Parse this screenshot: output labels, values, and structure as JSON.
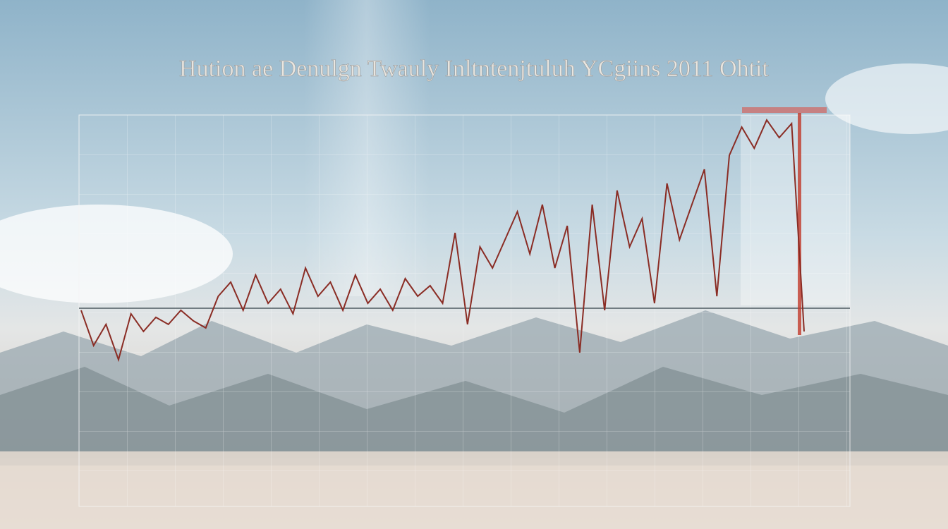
{
  "chart_data": {
    "type": "line",
    "title": "Hution ae Denulgn Twauly Inltntenjtuluh YCgiins 2011 Ohtit",
    "x": [
      0,
      1,
      2,
      3,
      4,
      5,
      6,
      7,
      8,
      9,
      10,
      11,
      12,
      13,
      14,
      15,
      16,
      17,
      18,
      19,
      20,
      21,
      22,
      23,
      24,
      25,
      26,
      27,
      28,
      29,
      30,
      31,
      32,
      33,
      34,
      35,
      36,
      37,
      38,
      39,
      40,
      41,
      42,
      43,
      44,
      45,
      46,
      47,
      48,
      49,
      50,
      51,
      52,
      53,
      54,
      55,
      56,
      57,
      58
    ],
    "xlim": [
      0,
      58
    ],
    "ylim": [
      0,
      100
    ],
    "series": [
      {
        "color": "#8a2c24",
        "values": [
          50.1,
          41.1,
          46.5,
          37.5,
          49.2,
          44.7,
          48.3,
          46.5,
          50.1,
          47.4,
          45.6,
          53.7,
          57.3,
          50.1,
          59.1,
          51.9,
          55.5,
          49.2,
          60.9,
          53.7,
          57.3,
          50.1,
          59.1,
          51.9,
          55.5,
          50.1,
          58.2,
          53.7,
          56.4,
          51.9,
          69.9,
          46.5,
          66.3,
          60.9,
          68.1,
          75.3,
          64.5,
          77.1,
          60.9,
          71.7,
          39.3,
          77.1,
          50.1,
          80.7,
          66.3,
          73.5,
          51.9,
          82.5,
          68.1,
          77.1,
          86.1,
          53.7,
          89.7,
          96.9,
          91.5,
          98.7,
          94.2,
          97.8,
          44.7
        ]
      }
    ]
  }
}
